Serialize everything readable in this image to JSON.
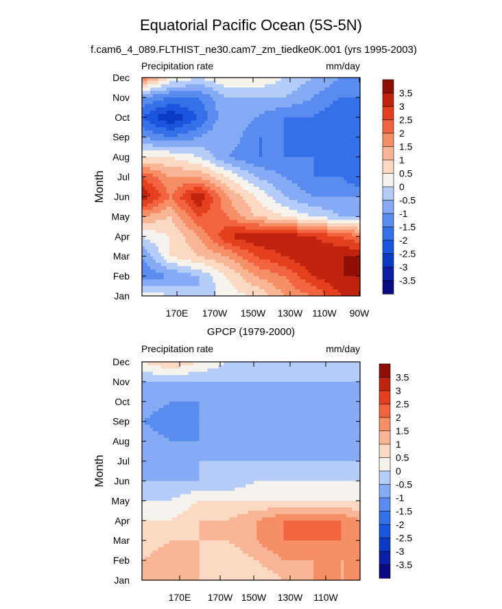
{
  "title": "Equatorial Pacific Ocean (5S-5N)",
  "colors": {
    "levels": [
      -3.5,
      -3,
      -2.5,
      -2,
      -1.5,
      -1,
      -0.5,
      0,
      0.5,
      1,
      1.5,
      2,
      2.5,
      3,
      3.5
    ],
    "fills": [
      "#0a0a82",
      "#0b1fa6",
      "#0b3ac4",
      "#1a55dd",
      "#3470e8",
      "#5a8cf0",
      "#86abf5",
      "#b5cdf8",
      "#f6f2ec",
      "#fbd9c2",
      "#f9b696",
      "#f68e66",
      "#f26440",
      "#e4401f",
      "#c0240e",
      "#8e1004"
    ],
    "ticks": [
      "3.5",
      "3",
      "2.5",
      "2",
      "1.5",
      "1",
      "0.5",
      "0",
      "-0.5",
      "-1",
      "-1.5",
      "-2",
      "-2.5",
      "-3",
      "-3.5"
    ]
  },
  "panels": [
    {
      "subtitle": "f.cam6_4_089.FLTHIST_ne30.cam7_zm_tiedke0K.001 (yrs 1995-2003)",
      "left_label": "Precipitation rate",
      "right_label": "mm/day",
      "ylabel": "Month",
      "yticks": [
        "Jan",
        "Feb",
        "Mar",
        "Apr",
        "May",
        "Jun",
        "Jul",
        "Aug",
        "Sep",
        "Oct",
        "Nov",
        "Dec"
      ],
      "xticks": [
        "170E",
        "170W",
        "150W",
        "130W",
        "110W",
        "90W"
      ]
    },
    {
      "subtitle": "GPCP (1979-2000)",
      "left_label": "Precipitation rate",
      "right_label": "mm/day",
      "ylabel": "Month",
      "yticks": [
        "Jan",
        "Feb",
        "Mar",
        "Apr",
        "May",
        "Jun",
        "Jul",
        "Aug",
        "Sep",
        "Oct",
        "Nov",
        "Dec"
      ],
      "xticks": [
        "170E",
        "170W",
        "150W",
        "130W",
        "110W"
      ]
    }
  ],
  "chart_data": [
    {
      "type": "heatmap",
      "title": "Equatorial Pacific Ocean (5S-5N)",
      "subtitle": "f.cam6_4_089.FLTHIST_ne30.cam7_zm_tiedke0K.001 (yrs 1995-2003)",
      "ylabel": "Month",
      "units": "mm/day",
      "x": [
        155,
        170,
        185,
        200,
        215,
        230,
        245,
        260,
        270
      ],
      "x_ticks": [
        "170E",
        "170W",
        "150W",
        "130W",
        "110W",
        "90W"
      ],
      "y": [
        "Jan",
        "Feb",
        "Mar",
        "Apr",
        "May",
        "Jun",
        "Jul",
        "Aug",
        "Sep",
        "Oct",
        "Nov",
        "Dec"
      ],
      "z": [
        [
          0.5,
          0.0,
          -0.5,
          0.3,
          0.5,
          1.5,
          2.0,
          3.0,
          3.2
        ],
        [
          -1.5,
          -1.0,
          -0.5,
          0.5,
          1.5,
          2.0,
          3.0,
          3.5,
          3.5
        ],
        [
          -1.0,
          0.5,
          1.0,
          1.5,
          2.5,
          3.0,
          3.5,
          3.5,
          3.5
        ],
        [
          0.0,
          0.5,
          1.5,
          3.0,
          3.5,
          3.5,
          3.0,
          2.5,
          2.0
        ],
        [
          1.5,
          1.0,
          2.5,
          2.0,
          1.0,
          0.5,
          0.0,
          -0.5,
          -0.5
        ],
        [
          3.5,
          2.0,
          3.5,
          1.5,
          0.5,
          -0.5,
          -1.0,
          -1.0,
          -1.0
        ],
        [
          2.5,
          1.5,
          1.5,
          0.5,
          -0.5,
          -1.0,
          -1.5,
          -1.5,
          -2.0
        ],
        [
          0.5,
          0.5,
          0.0,
          -1.0,
          -1.5,
          -1.5,
          -1.5,
          -2.0,
          -2.0
        ],
        [
          -1.0,
          -1.5,
          -1.0,
          -0.5,
          -1.5,
          -1.5,
          -2.0,
          -2.0,
          -2.0
        ],
        [
          -2.0,
          -3.0,
          -2.0,
          -0.5,
          -1.0,
          -1.5,
          -1.5,
          -2.0,
          -2.0
        ],
        [
          -1.0,
          -1.5,
          -1.5,
          -0.5,
          -0.5,
          -0.5,
          -1.0,
          -1.5,
          -1.5
        ],
        [
          2.0,
          0.5,
          0.0,
          0.5,
          0.5,
          0.0,
          -0.5,
          -1.0,
          -1.0
        ]
      ],
      "levels": [
        -3.5,
        -3,
        -2.5,
        -2,
        -1.5,
        -1,
        -0.5,
        0,
        0.5,
        1,
        1.5,
        2,
        2.5,
        3,
        3.5
      ]
    },
    {
      "type": "heatmap",
      "subtitle": "GPCP (1979-2000)",
      "ylabel": "Month",
      "units": "mm/day",
      "x": [
        155,
        170,
        185,
        200,
        215,
        230,
        245,
        260,
        270
      ],
      "x_ticks": [
        "170E",
        "170W",
        "150W",
        "130W",
        "110W"
      ],
      "y": [
        "Jan",
        "Feb",
        "Mar",
        "Apr",
        "May",
        "Jun",
        "Jul",
        "Aug",
        "Sep",
        "Oct",
        "Nov",
        "Dec"
      ],
      "z": [
        [
          1.5,
          1.5,
          1.0,
          0.5,
          0.5,
          1.0,
          1.5,
          1.5,
          1.5
        ],
        [
          1.0,
          1.5,
          1.0,
          0.5,
          1.0,
          1.5,
          1.5,
          1.5,
          1.5
        ],
        [
          0.5,
          1.0,
          1.0,
          1.0,
          1.5,
          2.0,
          2.0,
          2.0,
          1.5
        ],
        [
          0.5,
          0.5,
          1.0,
          1.0,
          1.5,
          2.0,
          2.0,
          2.0,
          1.5
        ],
        [
          0.0,
          0.0,
          0.5,
          0.5,
          0.5,
          0.5,
          0.5,
          0.5,
          0.5
        ],
        [
          -0.5,
          -0.5,
          -0.5,
          -0.5,
          0.0,
          0.0,
          0.0,
          0.0,
          0.0
        ],
        [
          -0.5,
          -1.0,
          -0.5,
          -0.5,
          -0.5,
          -0.5,
          -0.5,
          -0.5,
          -0.5
        ],
        [
          -0.5,
          -1.0,
          -1.0,
          -1.0,
          -0.5,
          -1.0,
          -1.0,
          -1.0,
          -1.0
        ],
        [
          -1.0,
          -1.5,
          -1.0,
          -1.0,
          -1.0,
          -1.0,
          -1.0,
          -1.0,
          -0.5
        ],
        [
          -0.5,
          -1.0,
          -1.0,
          -1.0,
          -1.0,
          -1.0,
          -1.0,
          -1.0,
          -1.0
        ],
        [
          -0.5,
          -0.5,
          -0.5,
          -0.5,
          -0.5,
          -0.5,
          -0.5,
          -0.5,
          -0.5
        ],
        [
          0.5,
          1.0,
          0.5,
          0.0,
          -0.5,
          -0.5,
          -0.5,
          -0.5,
          -0.5
        ]
      ],
      "levels": [
        -3.5,
        -3,
        -2.5,
        -2,
        -1.5,
        -1,
        -0.5,
        0,
        0.5,
        1,
        1.5,
        2,
        2.5,
        3,
        3.5
      ]
    }
  ]
}
